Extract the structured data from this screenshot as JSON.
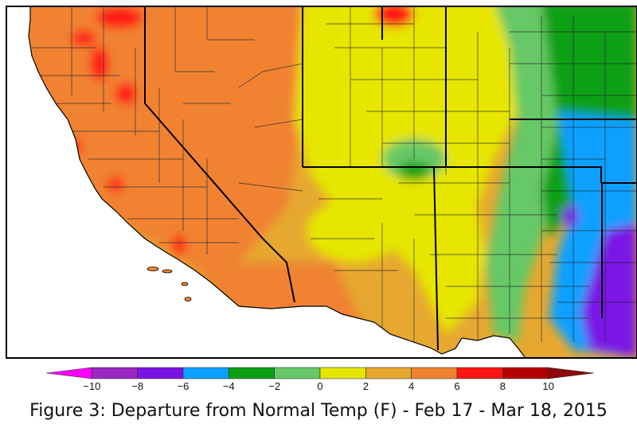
{
  "caption": "Figure 3: Departure from Normal Temp (F) - Feb 17 - Mar 18, 2015",
  "legend": {
    "bins": [
      {
        "from": -12,
        "to": -10,
        "color": "#ff00ff"
      },
      {
        "from": -10,
        "to": -8,
        "color": "#9c27c4"
      },
      {
        "from": -8,
        "to": -6,
        "color": "#7a12e6"
      },
      {
        "from": -6,
        "to": -4,
        "color": "#0aa0ff"
      },
      {
        "from": -4,
        "to": -2,
        "color": "#0aa012"
      },
      {
        "from": -2,
        "to": 0,
        "color": "#66c866"
      },
      {
        "from": 0,
        "to": 2,
        "color": "#e6e600"
      },
      {
        "from": 2,
        "to": 4,
        "color": "#e6a830"
      },
      {
        "from": 4,
        "to": 6,
        "color": "#f08230"
      },
      {
        "from": 6,
        "to": 8,
        "color": "#ff1414"
      },
      {
        "from": 8,
        "to": 10,
        "color": "#b40000"
      },
      {
        "from": 10,
        "to": 12,
        "color": "#8c0a0a"
      }
    ],
    "tick_labels": [
      "−10",
      "−8",
      "−6",
      "−4",
      "−2",
      "0",
      "2",
      "4",
      "6",
      "8",
      "10"
    ]
  },
  "map_colors": {
    "ocean": "#ffffff",
    "state_border": "#000000",
    "county_border": "#222222"
  }
}
